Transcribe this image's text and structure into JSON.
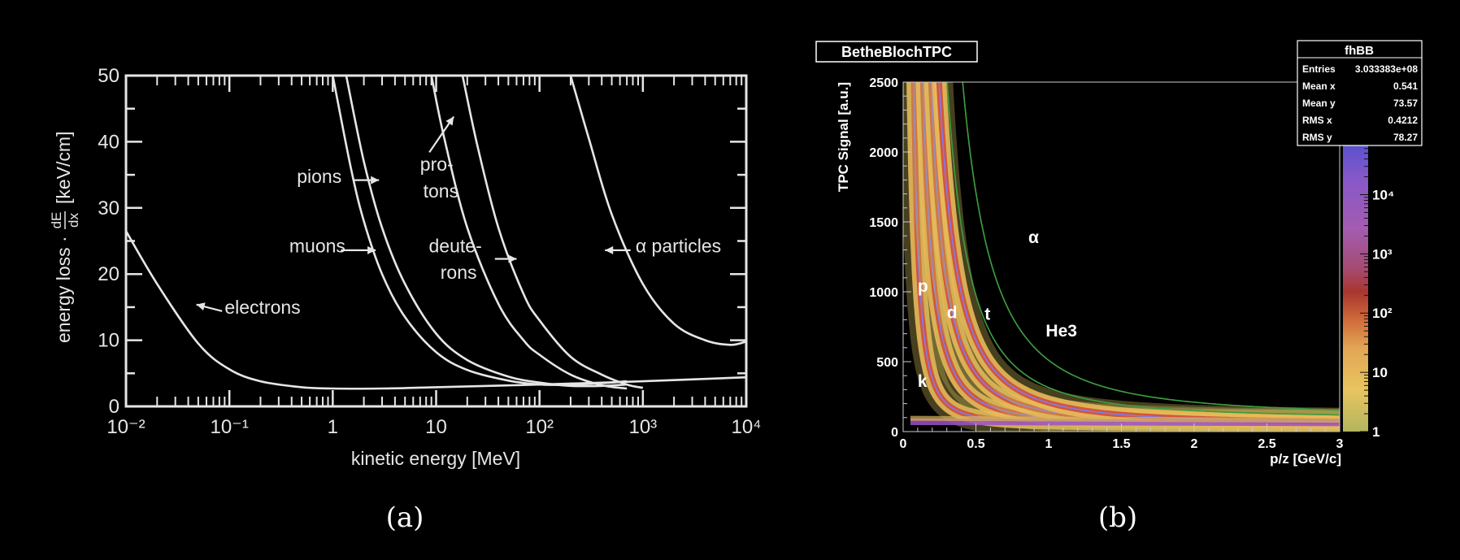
{
  "chart_data": [
    {
      "type": "line",
      "panel_label": "(a)",
      "xscale": "log",
      "xlim": [
        0.01,
        10000
      ],
      "ylim": [
        0,
        50
      ],
      "xticks": [
        0.01,
        0.1,
        1,
        10,
        100,
        1000,
        10000
      ],
      "xtick_labels": [
        "10⁻²",
        "10⁻¹",
        "1",
        "10",
        "10²",
        "10³",
        "10⁴"
      ],
      "yticks": [
        0,
        10,
        20,
        30,
        40,
        50
      ],
      "ytick_labels": [
        "0",
        "10",
        "20",
        "30",
        "40",
        "50"
      ],
      "xlabel": "kinetic energy [MeV]",
      "ylabel_prefix": "energy loss ·",
      "ylabel_frac_num": "dE",
      "ylabel_frac_den": "dx",
      "ylabel_unit": "[keV/cm]",
      "series": [
        {
          "name": "electrons",
          "x": [
            0.01,
            0.02,
            0.05,
            0.1,
            0.2,
            0.5,
            1,
            3,
            10,
            100,
            1000,
            10000
          ],
          "y": [
            26.5,
            18.5,
            9.5,
            5.6,
            3.8,
            2.9,
            2.7,
            2.7,
            2.9,
            3.3,
            3.8,
            4.4
          ]
        },
        {
          "name": "muons",
          "x": [
            1.0,
            1.5,
            2,
            3,
            5,
            10,
            20,
            50,
            100,
            200,
            400,
            700
          ],
          "y": [
            50,
            36,
            28,
            20,
            13.5,
            8.2,
            5.5,
            3.9,
            3.3,
            3.3,
            3.5,
            3.8
          ]
        },
        {
          "name": "pions",
          "x": [
            1.35,
            2,
            3,
            5,
            10,
            20,
            50,
            100,
            200,
            400,
            700
          ],
          "y": [
            50,
            37,
            27,
            18.5,
            11,
            7,
            4.5,
            3.6,
            3.1,
            3.1,
            3.3
          ]
        },
        {
          "name": "pro-\ntons",
          "x": [
            9,
            12,
            20,
            40,
            70,
            100,
            200,
            400,
            700
          ],
          "y": [
            50,
            40.5,
            27,
            15.5,
            10,
            7.8,
            4.8,
            3.2,
            2.7
          ]
        },
        {
          "name": "deute-\nrons",
          "x": [
            18,
            25,
            40,
            70,
            100,
            200,
            400,
            700,
            1000
          ],
          "y": [
            50,
            39.5,
            27,
            17,
            13,
            7.5,
            4.8,
            3.3,
            2.8
          ]
        },
        {
          "name": "α particles",
          "x": [
            200,
            300,
            500,
            1000,
            2000,
            4000,
            7000,
            10000
          ],
          "y": [
            50,
            40.5,
            29,
            18.5,
            12.5,
            10,
            9.3,
            9.8
          ]
        }
      ],
      "labels": [
        {
          "text": "electrons",
          "x": 0.09,
          "y": 14
        },
        {
          "text": "muons",
          "x": 0.38,
          "y": 23.3
        },
        {
          "text": "pions",
          "x": 0.45,
          "y": 33.8
        },
        {
          "text": "pro-",
          "x": 7,
          "y": 35.6
        },
        {
          "text": "tons",
          "x": 7.5,
          "y": 31.6
        },
        {
          "text": "deute-",
          "x": 8.5,
          "y": 23.3
        },
        {
          "text": "rons",
          "x": 11,
          "y": 19.3
        },
        {
          "text": "α particles",
          "x": 850,
          "y": 23.3
        }
      ],
      "arrows": [
        {
          "from": [
            0.085,
            14.4
          ],
          "to": [
            0.048,
            15.4
          ]
        },
        {
          "from": [
            1.2,
            23.6
          ],
          "to": [
            2.6,
            23.6
          ]
        },
        {
          "from": [
            1.6,
            34.2
          ],
          "to": [
            2.8,
            34.2
          ]
        },
        {
          "from": [
            8.6,
            38.4
          ],
          "to": [
            14.8,
            43.8
          ]
        },
        {
          "from": [
            37,
            22.3
          ],
          "to": [
            60,
            22.3
          ]
        },
        {
          "from": [
            760,
            23.6
          ],
          "to": [
            430,
            23.6
          ]
        }
      ]
    },
    {
      "type": "heatmap",
      "panel_label": "(b)",
      "title": "BetheBlochTPC",
      "xlabel": "p/z [GeV/c]",
      "ylabel": "TPC Signal [a.u.]",
      "xlim": [
        0,
        3
      ],
      "ylim": [
        0,
        2500
      ],
      "xticks": [
        0,
        0.5,
        1,
        1.5,
        2,
        2.5,
        3
      ],
      "xtick_labels": [
        "0",
        "0.5",
        "1",
        "1.5",
        "2",
        "2.5",
        "3"
      ],
      "yticks": [
        0,
        500,
        1000,
        1500,
        2000,
        2500
      ],
      "ytick_labels": [
        "0",
        "500",
        "1000",
        "1500",
        "2000",
        "2500"
      ],
      "colorbar": {
        "scale": "log",
        "ticks": [
          1,
          10,
          100,
          1000,
          10000
        ],
        "tick_labels": [
          "1",
          "10",
          "10²",
          "10³",
          "10⁴"
        ]
      },
      "stats_box": {
        "name": "fhBB",
        "rows": [
          {
            "label": "Entries",
            "value": "3.033383e+08"
          },
          {
            "label": "Mean x",
            "value": "0.541"
          },
          {
            "label": "Mean y",
            "value": "73.57"
          },
          {
            "label": "RMS x",
            "value": "0.4212"
          },
          {
            "label": "RMS y",
            "value": "78.27"
          }
        ]
      },
      "bands": [
        {
          "name": "k",
          "k": 13,
          "floor": 55
        },
        {
          "name": "p",
          "k": 45,
          "floor": 55
        },
        {
          "name": "d",
          "k": 90,
          "floor": 55
        },
        {
          "name": "t",
          "k": 150,
          "floor": 55
        },
        {
          "name": "He3",
          "k": 220,
          "floor": 95
        },
        {
          "name": "α",
          "k": 400,
          "floor": 110
        }
      ],
      "labels": [
        {
          "text": "k",
          "x": 0.1,
          "y": 320
        },
        {
          "text": "p",
          "x": 0.1,
          "y": 1000
        },
        {
          "text": "d",
          "x": 0.3,
          "y": 810
        },
        {
          "text": "t",
          "x": 0.56,
          "y": 800
        },
        {
          "text": "He3",
          "x": 0.98,
          "y": 680
        },
        {
          "text": "α",
          "x": 0.86,
          "y": 1350
        }
      ]
    }
  ]
}
